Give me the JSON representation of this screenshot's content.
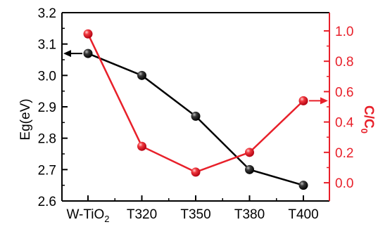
{
  "chart_data": {
    "type": "line",
    "categories": [
      "W-TiO",
      "T320",
      "T350",
      "T380",
      "T400"
    ],
    "first_category_subscript": "2",
    "left_axis": {
      "label": "Eg(eV)",
      "ylim": [
        2.6,
        3.2
      ],
      "ticks": [
        "2.6",
        "2.7",
        "2.8",
        "2.9",
        "3.0",
        "3.1",
        "3.2"
      ],
      "color": "#000000"
    },
    "right_axis": {
      "label_main": "C/C",
      "label_sub": "0",
      "ylim": [
        -0.12,
        1.12
      ],
      "ticks": [
        "0.0",
        "0.2",
        "0.4",
        "0.6",
        "0.8",
        "1.0"
      ],
      "color": "#e8202a"
    },
    "series": [
      {
        "axis": "left",
        "color": "#000000",
        "values": [
          3.07,
          3.0,
          2.87,
          2.7,
          2.65
        ]
      },
      {
        "axis": "right",
        "color": "#e8202a",
        "values": [
          0.98,
          0.24,
          0.07,
          0.2,
          0.54
        ]
      }
    ]
  }
}
